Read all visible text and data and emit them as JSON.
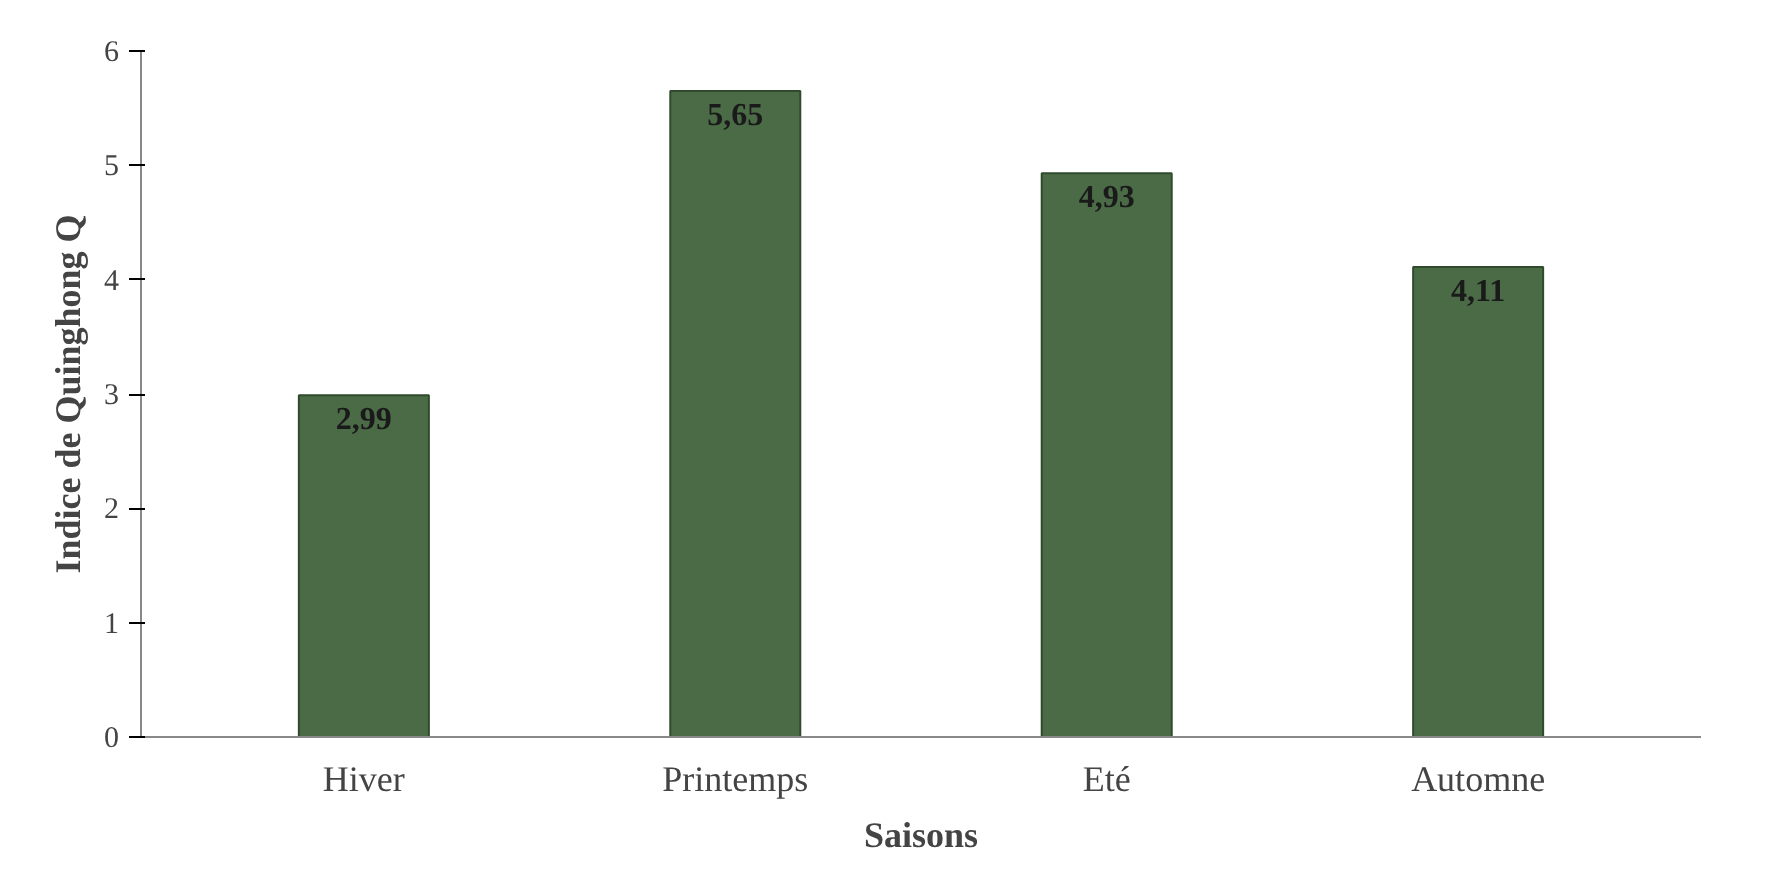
{
  "chart_data": {
    "type": "bar",
    "xlabel": "Saisons",
    "ylabel": "Indice de Quinghong Q",
    "categories": [
      "Hiver",
      "Printemps",
      "Eté",
      "Automne"
    ],
    "values": [
      2.99,
      5.65,
      4.93,
      4.11
    ],
    "value_labels": [
      "2,99",
      "5,65",
      "4,93",
      "4,11"
    ],
    "color": "#4b6b47",
    "ylim": [
      0,
      6
    ],
    "yticks": [
      0,
      1,
      2,
      3,
      4,
      5,
      6
    ],
    "grid": false
  }
}
